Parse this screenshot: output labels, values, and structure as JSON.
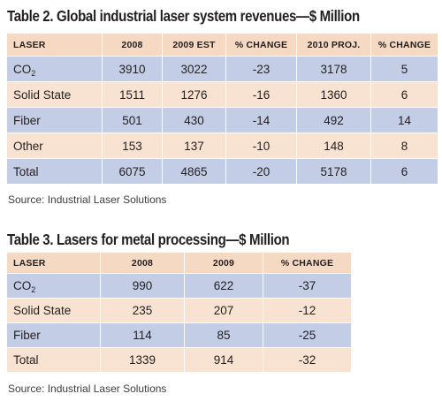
{
  "table2": {
    "title_bold": "Table 2.",
    "title_rest": " Global industrial laser system revenues—$ Million",
    "headers": [
      "LASER",
      "2008",
      "2009 EST",
      "% CHANGE",
      "2010 PROJ.",
      "% CHANGE"
    ],
    "rows": [
      {
        "laser": "CO",
        "laser_sub": "2",
        "cells": [
          "3910",
          "3022",
          "-23",
          "3178",
          "5"
        ]
      },
      {
        "laser": "Solid State",
        "laser_sub": "",
        "cells": [
          "1511",
          "1276",
          "-16",
          "1360",
          "6"
        ]
      },
      {
        "laser": "Fiber",
        "laser_sub": "",
        "cells": [
          "501",
          "430",
          "-14",
          "492",
          "14"
        ]
      },
      {
        "laser": "Other",
        "laser_sub": "",
        "cells": [
          "153",
          "137",
          "-10",
          "148",
          "8"
        ]
      },
      {
        "laser": "Total",
        "laser_sub": "",
        "cells": [
          "6075",
          "4865",
          "-20",
          "5178",
          "6"
        ]
      }
    ],
    "source": "Source: Industrial Laser Solutions"
  },
  "table3": {
    "title_bold": "Table 3.",
    "title_rest": " Lasers for metal processing—$ Million",
    "headers": [
      "LASER",
      "2008",
      "2009",
      "% CHANGE"
    ],
    "rows": [
      {
        "laser": "CO",
        "laser_sub": "2",
        "cells": [
          "990",
          "622",
          "-37"
        ]
      },
      {
        "laser": "Solid State",
        "laser_sub": "",
        "cells": [
          "235",
          "207",
          "-12"
        ]
      },
      {
        "laser": "Fiber",
        "laser_sub": "",
        "cells": [
          "114",
          "85",
          "-25"
        ]
      },
      {
        "laser": "Total",
        "laser_sub": "",
        "cells": [
          "1339",
          "914",
          "-32"
        ]
      }
    ],
    "source": "Source: Industrial Laser Solutions"
  },
  "colors": {
    "row_blue": "#c4cde6",
    "row_tan": "#f8e3d3",
    "header_tan": "#f6d9c3",
    "text": "#231f20"
  }
}
